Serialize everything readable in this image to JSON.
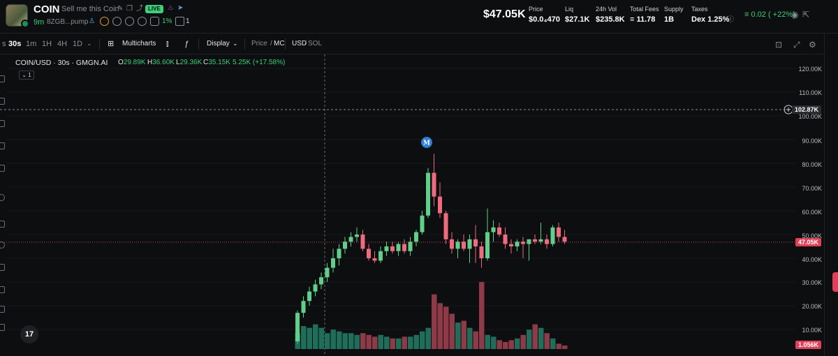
{
  "token": {
    "symbol": "COIN",
    "description": "Sell me this Coin",
    "live_badge": "LIVE",
    "age": "9m",
    "address": "8ZGB...pump",
    "holder_pct": "1%",
    "holder_count": "1"
  },
  "stats": {
    "market_cap": "$47.05K",
    "price_label": "Price",
    "price_value": "$0.0₄470",
    "liq_label": "Liq",
    "liq_value": "$27.1K",
    "vol_label": "24h Vol",
    "vol_value": "$235.8K",
    "fees_label": "Total Fees",
    "fees_value": "≡ 11.78",
    "supply_label": "Supply",
    "supply_value": "1B",
    "taxes_label": "Taxes",
    "taxes_value": "Dex 1.25%",
    "change": "≡ 0.02 ( +22%)"
  },
  "toolbar": {
    "timeframes": [
      "30s",
      "1m",
      "1H",
      "4H",
      "1D"
    ],
    "active_timeframe": "30s",
    "multicharts": "Multicharts",
    "display": "Display",
    "price_mc_a": "Price",
    "price_mc_b": "MC",
    "usd_sol_a": "USD",
    "usd_sol_b": "SOL"
  },
  "legend": {
    "title": "COIN/USD · 30s · GMGN.AI",
    "o_label": "O",
    "o": "29.89K",
    "h_label": "H",
    "h": "36.60K",
    "l_label": "L",
    "l": "29.36K",
    "c_label": "C",
    "c": "35.15K",
    "change": "5.25K (+17.58%)",
    "collapse": "1"
  },
  "axis": {
    "labels": [
      "120.00K",
      "110.00K",
      "100.00K",
      "90.00K",
      "80.00K",
      "70.00K",
      "60.00K",
      "50.00K",
      "40.00K",
      "30.00K",
      "20.00K",
      "10.00K"
    ],
    "crosshair_tag": "102.87K",
    "last_price_tag": "47.05K",
    "volume_tag": "1.056K",
    "marker": "M",
    "logo": "17"
  },
  "colors": {
    "up": "#5fd08a",
    "down": "#f06a7e",
    "vol_up": "#1f6e5a",
    "vol_down": "#8e3a48"
  },
  "chart_data": {
    "type": "candlestick",
    "y_unit": "market cap (USD)",
    "ylim": [
      0,
      125000
    ],
    "candles": [
      {
        "o": 5000,
        "h": 18000,
        "l": 4000,
        "c": 17000
      },
      {
        "o": 17000,
        "h": 24000,
        "l": 15000,
        "c": 22000
      },
      {
        "o": 22000,
        "h": 28000,
        "l": 20000,
        "c": 26000
      },
      {
        "o": 26000,
        "h": 31000,
        "l": 24000,
        "c": 29000
      },
      {
        "o": 29000,
        "h": 34000,
        "l": 27000,
        "c": 32000
      },
      {
        "o": 32000,
        "h": 38000,
        "l": 30000,
        "c": 36000
      },
      {
        "o": 36000,
        "h": 44000,
        "l": 34000,
        "c": 40000
      },
      {
        "o": 40000,
        "h": 46000,
        "l": 37000,
        "c": 44000
      },
      {
        "o": 44000,
        "h": 49000,
        "l": 42000,
        "c": 47000
      },
      {
        "o": 47000,
        "h": 51000,
        "l": 45000,
        "c": 49000
      },
      {
        "o": 49000,
        "h": 53000,
        "l": 47000,
        "c": 50000
      },
      {
        "o": 50000,
        "h": 52000,
        "l": 43000,
        "c": 44000
      },
      {
        "o": 44000,
        "h": 46000,
        "l": 39000,
        "c": 40000
      },
      {
        "o": 40000,
        "h": 43000,
        "l": 38000,
        "c": 39000
      },
      {
        "o": 39000,
        "h": 45000,
        "l": 38000,
        "c": 43000
      },
      {
        "o": 43000,
        "h": 47000,
        "l": 41000,
        "c": 45000
      },
      {
        "o": 45000,
        "h": 47000,
        "l": 42000,
        "c": 43000
      },
      {
        "o": 43000,
        "h": 47000,
        "l": 41000,
        "c": 46000
      },
      {
        "o": 46000,
        "h": 48000,
        "l": 42000,
        "c": 43000
      },
      {
        "o": 43000,
        "h": 49000,
        "l": 41000,
        "c": 47000
      },
      {
        "o": 47000,
        "h": 52000,
        "l": 45000,
        "c": 51000
      },
      {
        "o": 51000,
        "h": 60000,
        "l": 50000,
        "c": 58000
      },
      {
        "o": 58000,
        "h": 78000,
        "l": 57000,
        "c": 76000
      },
      {
        "o": 76000,
        "h": 84000,
        "l": 62000,
        "c": 66000
      },
      {
        "o": 66000,
        "h": 72000,
        "l": 57000,
        "c": 59000
      },
      {
        "o": 59000,
        "h": 60000,
        "l": 46000,
        "c": 48000
      },
      {
        "o": 48000,
        "h": 51000,
        "l": 42000,
        "c": 44000
      },
      {
        "o": 44000,
        "h": 48000,
        "l": 40000,
        "c": 47000
      },
      {
        "o": 47000,
        "h": 50000,
        "l": 43000,
        "c": 44000
      },
      {
        "o": 44000,
        "h": 50000,
        "l": 38000,
        "c": 48000
      },
      {
        "o": 48000,
        "h": 54000,
        "l": 38000,
        "c": 45000
      },
      {
        "o": 45000,
        "h": 47000,
        "l": 36000,
        "c": 40000
      },
      {
        "o": 40000,
        "h": 61000,
        "l": 39000,
        "c": 51000
      },
      {
        "o": 51000,
        "h": 56000,
        "l": 47000,
        "c": 53000
      },
      {
        "o": 53000,
        "h": 55000,
        "l": 49000,
        "c": 50000
      },
      {
        "o": 50000,
        "h": 53000,
        "l": 44000,
        "c": 46000
      },
      {
        "o": 46000,
        "h": 48000,
        "l": 42000,
        "c": 45000
      },
      {
        "o": 45000,
        "h": 48000,
        "l": 43000,
        "c": 47000
      },
      {
        "o": 47000,
        "h": 49000,
        "l": 40000,
        "c": 46000
      },
      {
        "o": 46000,
        "h": 48000,
        "l": 39000,
        "c": 48000
      },
      {
        "o": 48000,
        "h": 50000,
        "l": 46000,
        "c": 47000
      },
      {
        "o": 47000,
        "h": 55000,
        "l": 46000,
        "c": 48000
      },
      {
        "o": 48000,
        "h": 50000,
        "l": 44000,
        "c": 46000
      },
      {
        "o": 46000,
        "h": 54000,
        "l": 45000,
        "c": 53000
      },
      {
        "o": 53000,
        "h": 55000,
        "l": 47000,
        "c": 49000
      },
      {
        "o": 49000,
        "h": 52000,
        "l": 46000,
        "c": 47000
      }
    ],
    "volumes": [
      4500,
      6500,
      6000,
      7000,
      6000,
      4500,
      5500,
      5000,
      4500,
      4500,
      4000,
      4500,
      4000,
      3500,
      4000,
      3500,
      3000,
      3000,
      3500,
      3500,
      4000,
      5000,
      6000,
      15500,
      13000,
      12000,
      10000,
      7500,
      8000,
      6000,
      5000,
      19000,
      4000,
      3500,
      2500,
      2000,
      2500,
      3000,
      4000,
      5500,
      7000,
      6000,
      4500,
      3000,
      1500,
      1000
    ]
  }
}
